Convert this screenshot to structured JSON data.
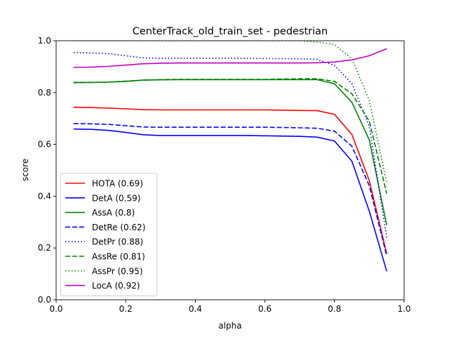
{
  "chart_data": {
    "type": "line",
    "title": "CenterTrack_old_train_set - pedestrian",
    "xlabel": "alpha",
    "ylabel": "score",
    "xlim": [
      0.0,
      1.0
    ],
    "ylim": [
      0.0,
      1.0
    ],
    "xticks": [
      "0.0",
      "0.2",
      "0.4",
      "0.6",
      "0.8",
      "1.0"
    ],
    "yticks": [
      "0.0",
      "0.2",
      "0.4",
      "0.6",
      "0.8",
      "1.0"
    ],
    "grid": false,
    "legend_position": "lower-left",
    "x": [
      0.05,
      0.1,
      0.15,
      0.2,
      0.25,
      0.3,
      0.35,
      0.4,
      0.45,
      0.5,
      0.55,
      0.6,
      0.65,
      0.7,
      0.75,
      0.8,
      0.85,
      0.9,
      0.95
    ],
    "series": [
      {
        "name": "HOTA (0.69)",
        "color": "#ff0000",
        "dash": "solid",
        "values": [
          0.743,
          0.742,
          0.74,
          0.737,
          0.734,
          0.733,
          0.733,
          0.733,
          0.733,
          0.733,
          0.733,
          0.733,
          0.732,
          0.731,
          0.73,
          0.716,
          0.638,
          0.46,
          0.178
        ]
      },
      {
        "name": "DetA (0.59)",
        "color": "#0000ff",
        "dash": "solid",
        "values": [
          0.659,
          0.658,
          0.654,
          0.646,
          0.637,
          0.634,
          0.634,
          0.634,
          0.634,
          0.634,
          0.634,
          0.633,
          0.632,
          0.631,
          0.628,
          0.613,
          0.535,
          0.342,
          0.11
        ]
      },
      {
        "name": "AssA (0.8)",
        "color": "#008000",
        "dash": "solid",
        "values": [
          0.839,
          0.839,
          0.84,
          0.843,
          0.848,
          0.849,
          0.85,
          0.85,
          0.85,
          0.85,
          0.85,
          0.85,
          0.85,
          0.85,
          0.85,
          0.834,
          0.762,
          0.617,
          0.288
        ]
      },
      {
        "name": "DetRe (0.62)",
        "color": "#0000ff",
        "dash": "dashed",
        "values": [
          0.68,
          0.679,
          0.677,
          0.672,
          0.667,
          0.666,
          0.666,
          0.666,
          0.666,
          0.666,
          0.666,
          0.666,
          0.665,
          0.664,
          0.662,
          0.651,
          0.593,
          0.44,
          0.17
        ]
      },
      {
        "name": "DetPr (0.88)",
        "color": "#0000ff",
        "dash": "dotted",
        "values": [
          0.954,
          0.953,
          0.95,
          0.942,
          0.934,
          0.932,
          0.932,
          0.932,
          0.932,
          0.932,
          0.932,
          0.931,
          0.931,
          0.93,
          0.928,
          0.905,
          0.835,
          0.67,
          0.24
        ]
      },
      {
        "name": "AssRe (0.81)",
        "color": "#008000",
        "dash": "dashed",
        "values": [
          0.838,
          0.839,
          0.84,
          0.844,
          0.848,
          0.85,
          0.851,
          0.851,
          0.851,
          0.851,
          0.851,
          0.851,
          0.852,
          0.853,
          0.853,
          0.843,
          0.795,
          0.69,
          0.41
        ]
      },
      {
        "name": "AssPr (0.95)",
        "color": "#008000",
        "dash": "dotted",
        "values": [
          1.0,
          1.0,
          1.0,
          1.0,
          1.0,
          1.0,
          1.0,
          1.0,
          1.0,
          1.0,
          1.0,
          1.0,
          1.0,
          1.0,
          0.995,
          0.985,
          0.93,
          0.77,
          0.45
        ]
      },
      {
        "name": "LocA (0.92)",
        "color": "#bf00bf",
        "dash": "solid",
        "values": [
          0.897,
          0.898,
          0.901,
          0.906,
          0.911,
          0.913,
          0.914,
          0.914,
          0.914,
          0.914,
          0.914,
          0.914,
          0.914,
          0.914,
          0.915,
          0.918,
          0.926,
          0.942,
          0.969
        ]
      }
    ]
  }
}
